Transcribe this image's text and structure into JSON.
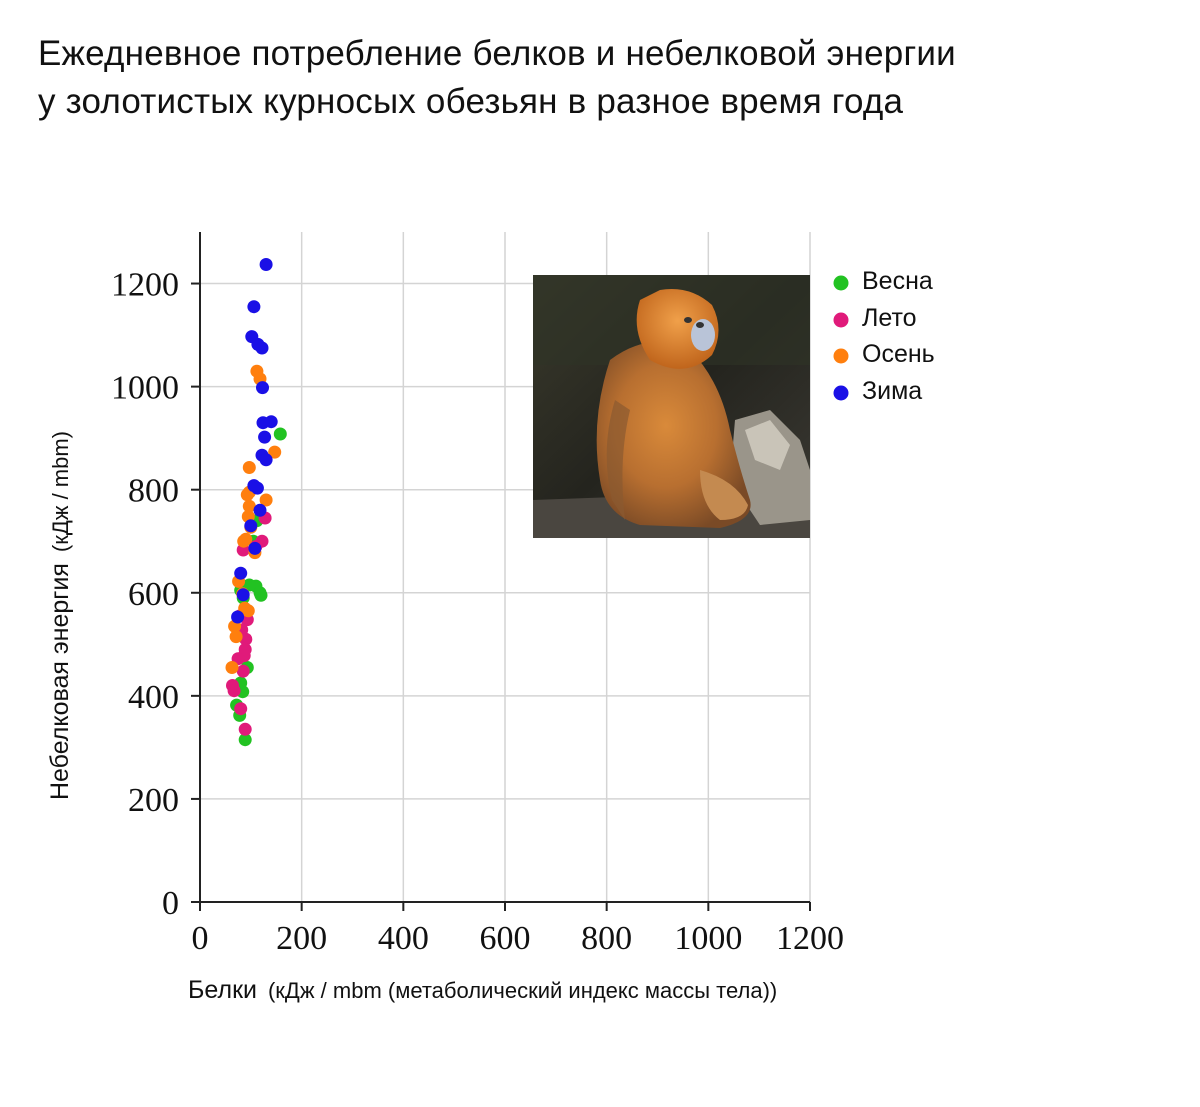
{
  "title": {
    "line1": "Ежедневное потребление белков и небелковой энергии",
    "line2": "у золотистых курносых обезьян в разное время года"
  },
  "photo": {
    "icon": "golden-snub-nosed-monkey-photo"
  },
  "chart_data": {
    "type": "scatter",
    "xlabel": "Белки (кДж / mbm (метаболический индекс массы тела))",
    "xlabel_main": "Белки",
    "xlabel_unit": "(кДж / mbm (метаболический индекс массы тела))",
    "ylabel": "Небелковая энергия (кДж / mbm)",
    "ylabel_main": "Небелковая энергия",
    "ylabel_unit": "(кДж / mbm)",
    "xlim": [
      0,
      1200
    ],
    "ylim": [
      0,
      1300
    ],
    "xticks": [
      0,
      200,
      400,
      600,
      800,
      1000,
      1200
    ],
    "yticks": [
      0,
      200,
      400,
      600,
      800,
      1000,
      1200
    ],
    "grid": true,
    "legend_position": "right, outside plot, top",
    "series": [
      {
        "name": "Весна",
        "color": "#22c222",
        "points": [
          [
            158,
            908
          ],
          [
            110,
            613
          ],
          [
            120,
            595
          ],
          [
            97,
            615
          ],
          [
            80,
            605
          ],
          [
            93,
            455
          ],
          [
            80,
            425
          ],
          [
            84,
            408
          ],
          [
            72,
            382
          ],
          [
            78,
            362
          ],
          [
            89,
            315
          ],
          [
            85,
            590
          ],
          [
            118,
            600
          ],
          [
            105,
            700
          ],
          [
            112,
            740
          ]
        ]
      },
      {
        "name": "Лето",
        "color": "#e01a7a",
        "points": [
          [
            128,
            745
          ],
          [
            122,
            700
          ],
          [
            85,
            683
          ],
          [
            110,
            690
          ],
          [
            82,
            528
          ],
          [
            90,
            510
          ],
          [
            89,
            490
          ],
          [
            93,
            548
          ],
          [
            87,
            478
          ],
          [
            75,
            472
          ],
          [
            85,
            448
          ],
          [
            64,
            420
          ],
          [
            67,
            410
          ],
          [
            80,
            375
          ],
          [
            89,
            335
          ],
          [
            78,
            555
          ]
        ]
      },
      {
        "name": "Осень",
        "color": "#ff7f0e",
        "points": [
          [
            112,
            1030
          ],
          [
            118,
            1015
          ],
          [
            147,
            873
          ],
          [
            97,
            843
          ],
          [
            130,
            780
          ],
          [
            97,
            795
          ],
          [
            93,
            790
          ],
          [
            97,
            768
          ],
          [
            95,
            748
          ],
          [
            100,
            727
          ],
          [
            86,
            700
          ],
          [
            90,
            704
          ],
          [
            108,
            678
          ],
          [
            76,
            622
          ],
          [
            84,
            598
          ],
          [
            95,
            565
          ],
          [
            68,
            535
          ],
          [
            71,
            515
          ],
          [
            63,
            455
          ],
          [
            88,
            570
          ]
        ]
      },
      {
        "name": "Зима",
        "color": "#1a10e6",
        "points": [
          [
            130,
            1237
          ],
          [
            106,
            1155
          ],
          [
            102,
            1097
          ],
          [
            114,
            1082
          ],
          [
            122,
            1075
          ],
          [
            123,
            998
          ],
          [
            124,
            930
          ],
          [
            140,
            932
          ],
          [
            127,
            902
          ],
          [
            122,
            867
          ],
          [
            130,
            858
          ],
          [
            106,
            808
          ],
          [
            113,
            803
          ],
          [
            118,
            760
          ],
          [
            100,
            730
          ],
          [
            108,
            686
          ],
          [
            80,
            638
          ],
          [
            85,
            596
          ],
          [
            74,
            553
          ]
        ]
      }
    ]
  }
}
